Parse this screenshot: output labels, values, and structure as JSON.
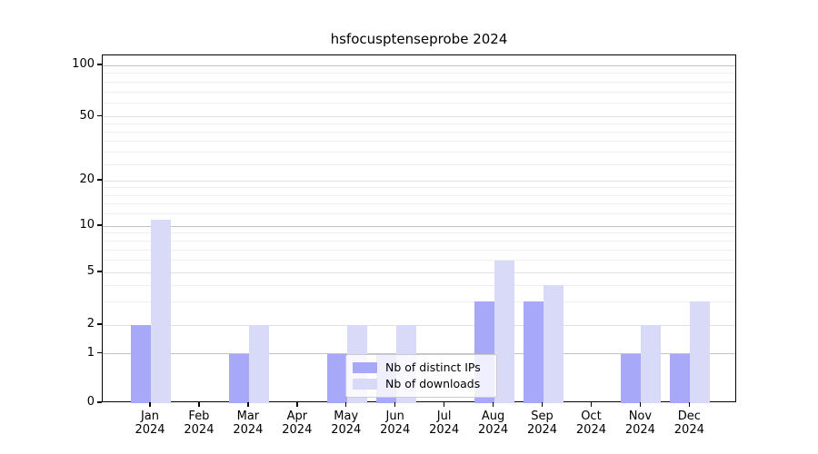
{
  "title": "hsfocusptenseprobe 2024",
  "chart_data": {
    "type": "bar",
    "title": "hsfocusptenseprobe 2024",
    "categories": [
      "Jan",
      "Feb",
      "Mar",
      "Apr",
      "May",
      "Jun",
      "Jul",
      "Aug",
      "Sep",
      "Oct",
      "Nov",
      "Dec"
    ],
    "year_label": "2024",
    "series": [
      {
        "name": "Nb of distinct IPs",
        "color": "#a8a8f8",
        "values": [
          2,
          0,
          1,
          0,
          1,
          1,
          0,
          3,
          3,
          0,
          1,
          1
        ]
      },
      {
        "name": "Nb of downloads",
        "color": "#d9d9f8",
        "values": [
          11,
          0,
          2,
          0,
          2,
          2,
          0,
          6,
          4,
          0,
          2,
          3
        ]
      }
    ],
    "xlabel": "",
    "ylabel": "",
    "y_axis": {
      "scale": "log-like",
      "range": [
        0,
        100
      ],
      "ticks": [
        0,
        1,
        2,
        5,
        10,
        20,
        50,
        100
      ],
      "minor_gridlines": [
        3,
        4,
        6,
        7,
        8,
        9,
        12,
        14,
        16,
        18,
        25,
        30,
        35,
        40,
        45,
        60,
        70,
        80,
        90
      ]
    },
    "legend": {
      "position": "lower center",
      "entries": [
        "Nb of distinct IPs",
        "Nb of downloads"
      ]
    },
    "grid": true
  },
  "colors": {
    "bar_distinct_ips": "#a8a8f8",
    "bar_downloads": "#d9d9f8",
    "grid_decade": "#c2c2c2",
    "grid_major": "#e0e0e0",
    "grid_minor": "#efefef",
    "spine": "#000000",
    "background": "#ffffff",
    "legend_border": "#cccccc"
  }
}
